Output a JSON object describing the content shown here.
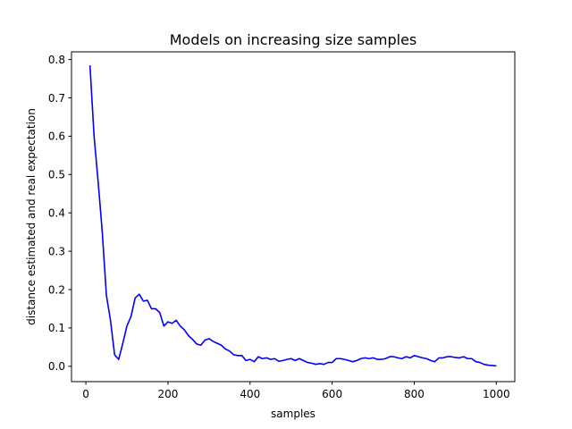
{
  "chart_data": {
    "type": "line",
    "title": "Models on increasing size samples",
    "xlabel": "samples",
    "ylabel": "distance estimated and real expectation",
    "xlim": [
      -35,
      1045
    ],
    "ylim": [
      -0.04,
      0.82
    ],
    "xticks": [
      0,
      200,
      400,
      600,
      800,
      1000
    ],
    "yticks": [
      0.0,
      0.1,
      0.2,
      0.3,
      0.4,
      0.5,
      0.6,
      0.7,
      0.8
    ],
    "grid": false,
    "series": [
      {
        "color": "#0000ff",
        "x": [
          10,
          20,
          30,
          40,
          50,
          60,
          70,
          80,
          90,
          100,
          110,
          120,
          130,
          140,
          150,
          160,
          170,
          180,
          190,
          200,
          210,
          220,
          230,
          240,
          250,
          260,
          270,
          280,
          290,
          300,
          310,
          320,
          330,
          340,
          350,
          360,
          370,
          380,
          390,
          400,
          410,
          420,
          430,
          440,
          450,
          460,
          470,
          480,
          490,
          500,
          510,
          520,
          530,
          540,
          550,
          560,
          570,
          580,
          590,
          600,
          610,
          620,
          630,
          640,
          650,
          660,
          670,
          680,
          690,
          700,
          710,
          720,
          730,
          740,
          750,
          760,
          770,
          780,
          790,
          800,
          810,
          820,
          830,
          840,
          850,
          860,
          870,
          880,
          890,
          900,
          910,
          920,
          930,
          940,
          950,
          960,
          970,
          980,
          990,
          1000
        ],
        "y": [
          0.785,
          0.6,
          0.48,
          0.35,
          0.185,
          0.12,
          0.03,
          0.018,
          0.06,
          0.105,
          0.13,
          0.178,
          0.188,
          0.17,
          0.172,
          0.15,
          0.15,
          0.14,
          0.105,
          0.116,
          0.112,
          0.12,
          0.105,
          0.095,
          0.08,
          0.07,
          0.058,
          0.055,
          0.068,
          0.072,
          0.065,
          0.06,
          0.055,
          0.045,
          0.04,
          0.03,
          0.028,
          0.028,
          0.015,
          0.018,
          0.012,
          0.025,
          0.02,
          0.022,
          0.018,
          0.02,
          0.013,
          0.015,
          0.018,
          0.02,
          0.015,
          0.02,
          0.015,
          0.01,
          0.008,
          0.005,
          0.007,
          0.005,
          0.01,
          0.01,
          0.02,
          0.02,
          0.018,
          0.015,
          0.012,
          0.015,
          0.02,
          0.022,
          0.02,
          0.022,
          0.018,
          0.018,
          0.02,
          0.025,
          0.025,
          0.022,
          0.02,
          0.025,
          0.022,
          0.028,
          0.025,
          0.022,
          0.02,
          0.015,
          0.012,
          0.022,
          0.022,
          0.025,
          0.025,
          0.023,
          0.022,
          0.025,
          0.02,
          0.02,
          0.012,
          0.01,
          0.005,
          0.003,
          0.002,
          0.001
        ]
      }
    ]
  }
}
